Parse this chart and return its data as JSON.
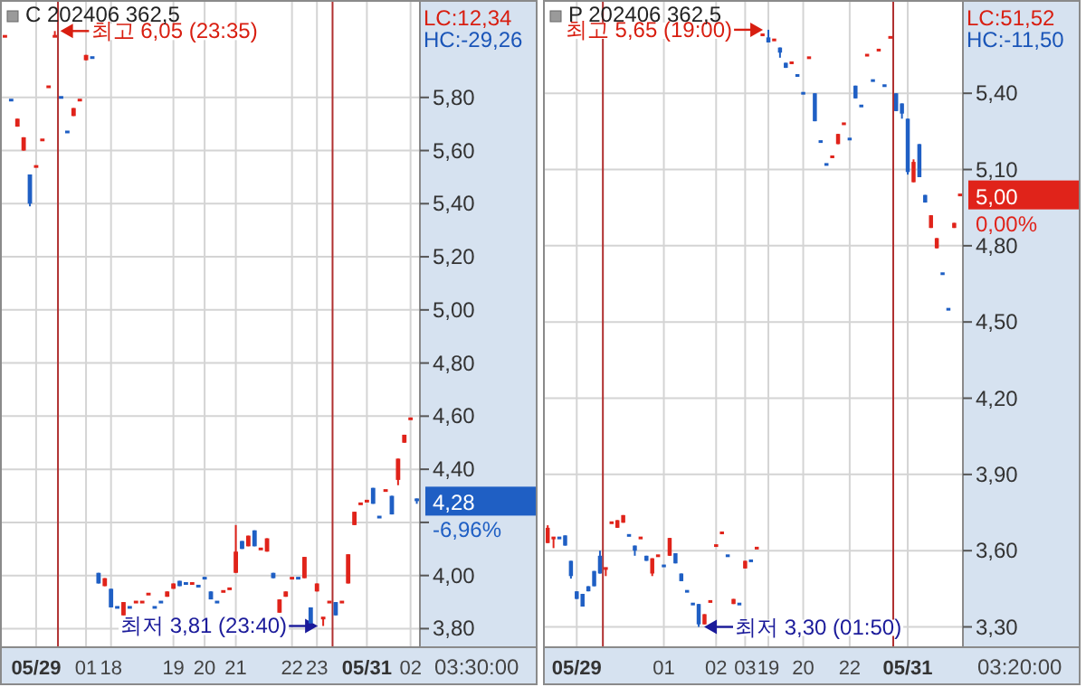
{
  "chart_data": [
    {
      "type": "candlestick",
      "title": "C 202406 362,5",
      "categories": [
        null,
        null,
        null,
        null,
        null,
        "05/29",
        null,
        null,
        null,
        null,
        null,
        null,
        null,
        "01",
        null,
        null,
        null,
        "18",
        null,
        null,
        null,
        null,
        null,
        null,
        null,
        null,
        null,
        "19",
        null,
        null,
        null,
        null,
        "20",
        null,
        null,
        null,
        null,
        "21",
        null,
        null,
        null,
        null,
        null,
        null,
        null,
        null,
        "22",
        null,
        null,
        null,
        "23",
        null,
        null,
        null,
        null,
        null,
        null,
        null,
        "05/31",
        null,
        null,
        null,
        null,
        null,
        null,
        "02",
        null
      ],
      "ohlc": [
        [
          6.03,
          6.03,
          6.03,
          6.03
        ],
        [
          5.79,
          5.79,
          5.79,
          5.79
        ],
        [
          5.69,
          5.72,
          5.69,
          5.72
        ],
        [
          5.6,
          5.65,
          5.6,
          5.65
        ],
        [
          5.51,
          5.51,
          5.39,
          5.4
        ],
        [
          5.54,
          5.54,
          5.54,
          5.54
        ],
        [
          5.64,
          5.64,
          5.64,
          5.64
        ],
        [
          5.84,
          5.84,
          5.84,
          5.84
        ],
        [
          6.03,
          6.05,
          6.03,
          6.03
        ],
        [
          5.8,
          5.8,
          5.8,
          5.8
        ],
        [
          5.67,
          5.67,
          5.67,
          5.67
        ],
        [
          5.73,
          5.76,
          5.73,
          5.76
        ],
        [
          5.79,
          5.79,
          5.79,
          5.79
        ],
        [
          5.94,
          5.96,
          5.94,
          5.96
        ],
        [
          5.95,
          5.95,
          5.95,
          5.95
        ],
        [
          4.01,
          4.01,
          3.97,
          3.97
        ],
        [
          3.96,
          3.99,
          3.96,
          3.99
        ],
        [
          3.95,
          3.95,
          3.88,
          3.88
        ],
        [
          3.88,
          3.88,
          3.88,
          3.88
        ],
        [
          3.85,
          3.9,
          3.85,
          3.9
        ],
        [
          3.88,
          3.88,
          3.88,
          3.88
        ],
        [
          3.9,
          3.9,
          3.9,
          3.9
        ],
        [
          3.9,
          3.9,
          3.9,
          3.9
        ],
        [
          3.93,
          3.93,
          3.93,
          3.93
        ],
        [
          3.88,
          3.88,
          3.88,
          3.88
        ],
        [
          3.9,
          3.9,
          3.9,
          3.9
        ],
        [
          3.92,
          3.94,
          3.92,
          3.94
        ],
        [
          3.95,
          3.97,
          3.95,
          3.97
        ],
        [
          3.98,
          3.98,
          3.96,
          3.96
        ],
        [
          3.97,
          3.97,
          3.97,
          3.97
        ],
        [
          3.97,
          3.97,
          3.97,
          3.97
        ],
        [
          3.96,
          3.96,
          3.96,
          3.96
        ],
        [
          3.99,
          3.99,
          3.99,
          3.99
        ],
        [
          3.94,
          3.94,
          3.91,
          3.91
        ],
        [
          3.9,
          3.9,
          3.9,
          3.9
        ],
        [
          3.94,
          3.94,
          3.94,
          3.94
        ],
        [
          3.95,
          3.95,
          3.95,
          3.95
        ],
        [
          4.01,
          4.19,
          4.01,
          4.09
        ],
        [
          4.13,
          4.13,
          4.1,
          4.1
        ],
        [
          4.11,
          4.15,
          4.11,
          4.15
        ],
        [
          4.17,
          4.17,
          4.11,
          4.11
        ],
        [
          4.1,
          4.1,
          4.1,
          4.1
        ],
        [
          4.09,
          4.14,
          4.09,
          4.14
        ],
        [
          4.01,
          4.01,
          3.99,
          3.99
        ],
        [
          3.86,
          3.91,
          3.86,
          3.91
        ],
        [
          3.92,
          3.94,
          3.92,
          3.94
        ],
        [
          3.99,
          3.99,
          3.99,
          3.99
        ],
        [
          3.99,
          3.99,
          3.99,
          3.99
        ],
        [
          3.99,
          4.07,
          3.99,
          4.07
        ],
        [
          3.88,
          3.88,
          3.82,
          3.82
        ],
        [
          3.94,
          3.97,
          3.94,
          3.97
        ],
        [
          3.84,
          3.84,
          3.81,
          3.84
        ],
        [
          3.9,
          3.9,
          3.9,
          3.9
        ],
        [
          3.9,
          3.9,
          3.85,
          3.85
        ],
        [
          3.9,
          3.9,
          3.9,
          3.9
        ],
        [
          3.97,
          4.08,
          3.97,
          4.08
        ],
        [
          4.19,
          4.24,
          4.19,
          4.24
        ],
        [
          4.27,
          4.27,
          4.27,
          4.27
        ],
        [
          4.28,
          4.28,
          4.28,
          4.28
        ],
        [
          4.33,
          4.33,
          4.27,
          4.27
        ],
        [
          4.22,
          4.22,
          4.22,
          4.22
        ],
        [
          4.32,
          4.32,
          4.32,
          4.32
        ],
        [
          4.3,
          4.3,
          4.23,
          4.23
        ],
        [
          4.36,
          4.44,
          4.34,
          4.44
        ],
        [
          4.5,
          4.53,
          4.5,
          4.53
        ],
        [
          4.59,
          4.59,
          4.59,
          4.59
        ],
        [
          4.29,
          4.29,
          4.27,
          4.28
        ]
      ],
      "colors": [
        "#e0231a",
        "#1f5fc4",
        "#e0231a",
        "#e0231a",
        "#1f5fc4",
        "#e0231a",
        "#e0231a",
        "#e0231a",
        "#e0231a",
        "#1f5fc4",
        "#1f5fc4",
        "#e0231a",
        "#e0231a",
        "#e0231a",
        "#1f5fc4",
        "#1f5fc4",
        "#e0231a",
        "#1f5fc4",
        "#1f5fc4",
        "#e0231a",
        "#1f5fc4",
        "#e0231a",
        "#e0231a",
        "#e0231a",
        "#1f5fc4",
        "#1f5fc4",
        "#e0231a",
        "#e0231a",
        "#1f5fc4",
        "#1f5fc4",
        "#e0231a",
        "#1f5fc4",
        "#1f5fc4",
        "#1f5fc4",
        "#1f5fc4",
        "#e0231a",
        "#e0231a",
        "#e0231a",
        "#1f5fc4",
        "#e0231a",
        "#1f5fc4",
        "#e0231a",
        "#e0231a",
        "#1f5fc4",
        "#e0231a",
        "#e0231a",
        "#e0231a",
        "#1f5fc4",
        "#e0231a",
        "#1f5fc4",
        "#e0231a",
        "#e0231a",
        "#e0231a",
        "#1f5fc4",
        "#e0231a",
        "#e0231a",
        "#e0231a",
        "#e0231a",
        "#e0231a",
        "#1f5fc4",
        "#1f5fc4",
        "#e0231a",
        "#1f5fc4",
        "#e0231a",
        "#e0231a",
        "#e0231a",
        "#1f5fc4"
      ],
      "ylim": [
        3.73,
        6.16
      ],
      "yticks": [
        {
          "value": 3.8,
          "label": "3,80"
        },
        {
          "value": 4.0,
          "label": "4,00"
        },
        {
          "value": 4.2,
          "label": null
        },
        {
          "value": 4.4,
          "label": "4,40"
        },
        {
          "value": 4.6,
          "label": "4,60"
        },
        {
          "value": 4.8,
          "label": "4,80"
        },
        {
          "value": 5.0,
          "label": "5,00"
        },
        {
          "value": 5.2,
          "label": "5,20"
        },
        {
          "value": 5.4,
          "label": "5,40"
        },
        {
          "value": 5.6,
          "label": "5,60"
        },
        {
          "value": 5.8,
          "label": "5,80"
        }
      ],
      "grid": true,
      "annotations": [
        "LC:12,34",
        "HC:-29,26",
        "03:30:00",
        "최고 6,05 (23:35)",
        "최저 3,81 (23:40)",
        "4,28",
        "-6,96%"
      ]
    },
    {
      "type": "candlestick",
      "title": "P 202406 362,5",
      "categories": [
        null,
        null,
        null,
        null,
        null,
        "05/29",
        null,
        null,
        null,
        null,
        null,
        null,
        null,
        null,
        null,
        null,
        null,
        null,
        null,
        null,
        "01",
        null,
        null,
        null,
        null,
        null,
        null,
        null,
        null,
        "02",
        null,
        null,
        null,
        null,
        "03",
        null,
        null,
        null,
        "19",
        null,
        null,
        null,
        null,
        null,
        "20",
        null,
        null,
        null,
        null,
        null,
        null,
        null,
        "22",
        null,
        null,
        null,
        null,
        null,
        null,
        null,
        null,
        null,
        "05/31",
        null,
        null,
        null,
        null,
        null,
        null,
        null,
        null,
        null
      ],
      "ohlc": [
        [
          3.63,
          3.7,
          3.63,
          3.69
        ],
        [
          3.65,
          3.65,
          3.61,
          3.65
        ],
        [
          3.65,
          3.65,
          3.65,
          3.65
        ],
        [
          3.66,
          3.66,
          3.62,
          3.62
        ],
        [
          3.56,
          3.56,
          3.49,
          3.5
        ],
        [
          3.44,
          3.44,
          3.41,
          3.41
        ],
        [
          3.43,
          3.43,
          3.38,
          3.38
        ],
        [
          3.46,
          3.46,
          3.44,
          3.44
        ],
        [
          3.52,
          3.52,
          3.46,
          3.46
        ],
        [
          3.58,
          3.6,
          3.51,
          3.51
        ],
        [
          3.53,
          3.53,
          3.5,
          3.53
        ],
        [
          3.71,
          3.71,
          3.71,
          3.71
        ],
        [
          3.69,
          3.72,
          3.69,
          3.72
        ],
        [
          3.71,
          3.74,
          3.71,
          3.74
        ],
        [
          3.66,
          3.66,
          3.66,
          3.66
        ],
        [
          3.62,
          3.62,
          3.58,
          3.6
        ],
        [
          3.65,
          3.65,
          3.65,
          3.65
        ],
        [
          3.58,
          3.58,
          3.56,
          3.56
        ],
        [
          3.51,
          3.57,
          3.5,
          3.57
        ],
        [
          3.58,
          3.58,
          3.58,
          3.58
        ],
        [
          3.54,
          3.54,
          3.54,
          3.54
        ],
        [
          3.58,
          3.65,
          3.58,
          3.65
        ],
        [
          3.59,
          3.59,
          3.55,
          3.55
        ],
        [
          3.51,
          3.51,
          3.48,
          3.48
        ],
        [
          3.44,
          3.44,
          3.44,
          3.44
        ],
        [
          3.39,
          3.39,
          3.39,
          3.39
        ],
        [
          3.39,
          3.39,
          3.3,
          3.31
        ],
        [
          3.31,
          3.35,
          3.31,
          3.35
        ],
        [
          3.4,
          3.4,
          3.4,
          3.4
        ],
        [
          3.62,
          3.62,
          3.62,
          3.62
        ],
        [
          3.67,
          3.67,
          3.67,
          3.67
        ],
        [
          3.58,
          3.58,
          3.58,
          3.58
        ],
        [
          3.39,
          3.41,
          3.39,
          3.41
        ],
        [
          3.39,
          3.39,
          3.39,
          3.39
        ],
        [
          3.53,
          3.56,
          3.53,
          3.56
        ],
        [
          3.56,
          3.56,
          3.56,
          3.56
        ],
        [
          3.61,
          3.61,
          3.61,
          3.61
        ],
        [
          5.63,
          5.63,
          5.63,
          5.63
        ],
        [
          5.62,
          5.65,
          5.6,
          5.6
        ],
        [
          5.61,
          5.61,
          5.61,
          5.61
        ],
        [
          5.58,
          5.58,
          5.54,
          5.56
        ],
        [
          5.52,
          5.52,
          5.5,
          5.5
        ],
        [
          5.52,
          5.52,
          5.52,
          5.52
        ],
        [
          5.47,
          5.47,
          5.47,
          5.47
        ],
        [
          5.4,
          5.4,
          5.4,
          5.4
        ],
        [
          5.54,
          5.54,
          5.54,
          5.54
        ],
        [
          5.4,
          5.4,
          5.29,
          5.29
        ],
        [
          5.21,
          5.21,
          5.21,
          5.21
        ],
        [
          5.12,
          5.12,
          5.12,
          5.12
        ],
        [
          5.15,
          5.15,
          5.15,
          5.15
        ],
        [
          5.2,
          5.24,
          5.2,
          5.24
        ],
        [
          5.28,
          5.28,
          5.28,
          5.28
        ],
        [
          5.22,
          5.22,
          5.22,
          5.22
        ],
        [
          5.43,
          5.43,
          5.38,
          5.38
        ],
        [
          5.35,
          5.35,
          5.35,
          5.35
        ],
        [
          5.55,
          5.55,
          5.55,
          5.55
        ],
        [
          5.45,
          5.45,
          5.45,
          5.45
        ],
        [
          5.57,
          5.57,
          5.57,
          5.57
        ],
        [
          5.43,
          5.43,
          5.43,
          5.43
        ],
        [
          5.62,
          5.62,
          5.62,
          5.62
        ],
        [
          5.4,
          5.4,
          5.33,
          5.33
        ],
        [
          5.36,
          5.36,
          5.3,
          5.32
        ],
        [
          5.3,
          5.3,
          5.08,
          5.09
        ],
        [
          5.05,
          5.14,
          5.05,
          5.13
        ],
        [
          5.2,
          5.2,
          5.07,
          5.07
        ],
        [
          5.0,
          5.0,
          4.97,
          4.97
        ],
        [
          4.87,
          4.92,
          4.87,
          4.92
        ],
        [
          4.79,
          4.83,
          4.79,
          4.83
        ],
        [
          4.69,
          4.69,
          4.69,
          4.69
        ],
        [
          4.55,
          4.55,
          4.55,
          4.55
        ],
        [
          4.87,
          4.89,
          4.87,
          4.89
        ],
        [
          5.0,
          5.0,
          5.0,
          5.0
        ]
      ],
      "colors": [
        "#e0231a",
        "#e0231a",
        "#1f5fc4",
        "#1f5fc4",
        "#1f5fc4",
        "#1f5fc4",
        "#1f5fc4",
        "#1f5fc4",
        "#1f5fc4",
        "#1f5fc4",
        "#e0231a",
        "#e0231a",
        "#e0231a",
        "#e0231a",
        "#1f5fc4",
        "#1f5fc4",
        "#e0231a",
        "#1f5fc4",
        "#e0231a",
        "#e0231a",
        "#1f5fc4",
        "#e0231a",
        "#1f5fc4",
        "#1f5fc4",
        "#1f5fc4",
        "#1f5fc4",
        "#1f5fc4",
        "#e0231a",
        "#e0231a",
        "#e0231a",
        "#e0231a",
        "#1f5fc4",
        "#e0231a",
        "#1f5fc4",
        "#e0231a",
        "#1f5fc4",
        "#e0231a",
        "#e0231a",
        "#1f5fc4",
        "#e0231a",
        "#1f5fc4",
        "#1f5fc4",
        "#e0231a",
        "#1f5fc4",
        "#1f5fc4",
        "#e0231a",
        "#1f5fc4",
        "#1f5fc4",
        "#1f5fc4",
        "#e0231a",
        "#e0231a",
        "#e0231a",
        "#1f5fc4",
        "#1f5fc4",
        "#1f5fc4",
        "#e0231a",
        "#1f5fc4",
        "#e0231a",
        "#1f5fc4",
        "#e0231a",
        "#1f5fc4",
        "#1f5fc4",
        "#1f5fc4",
        "#e0231a",
        "#1f5fc4",
        "#1f5fc4",
        "#e0231a",
        "#e0231a",
        "#1f5fc4",
        "#1f5fc4",
        "#e0231a",
        "#e0231a"
      ],
      "ylim": [
        3.22,
        5.76
      ],
      "yticks": [
        {
          "value": 3.3,
          "label": "3,30"
        },
        {
          "value": 3.6,
          "label": "3,60"
        },
        {
          "value": 3.9,
          "label": "3,90"
        },
        {
          "value": 4.2,
          "label": "4,20"
        },
        {
          "value": 4.5,
          "label": "4,50"
        },
        {
          "value": 4.8,
          "label": "4,80"
        },
        {
          "value": 5.1,
          "label": "5,10"
        },
        {
          "value": 5.4,
          "label": "5,40"
        }
      ],
      "grid": true,
      "annotations": [
        "LC:51,52",
        "HC:-11,50",
        "03:20:00",
        "최고 5,65 (19:00)",
        "최저 3,30 (01:50)",
        "5,00",
        "0,00%"
      ]
    }
  ]
}
